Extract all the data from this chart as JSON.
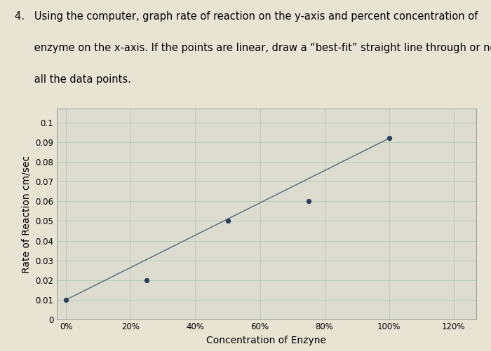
{
  "xlabel": "Concentration of Enzyne",
  "ylabel": "Rate of Reaction cm/sec",
  "x_data": [
    0,
    25,
    50,
    75,
    100
  ],
  "y_data": [
    0.01,
    0.02,
    0.05,
    0.06,
    0.092
  ],
  "line_x": [
    0,
    100
  ],
  "line_y": [
    0.01,
    0.092
  ],
  "x_ticks": [
    0,
    20,
    40,
    60,
    80,
    100,
    120
  ],
  "x_tick_labels": [
    "0%",
    "20%",
    "40%",
    "60%",
    "80%",
    "100%",
    "120%"
  ],
  "y_ticks": [
    0,
    0.01,
    0.02,
    0.03,
    0.04,
    0.05,
    0.06,
    0.07,
    0.08,
    0.09,
    0.1
  ],
  "y_tick_labels": [
    "0",
    "0.01",
    "0.02",
    "0.03",
    "0.04",
    "0.05",
    "0.06",
    "0.07",
    "0.08",
    "0.09",
    "0.1"
  ],
  "xlim": [
    -3,
    127
  ],
  "ylim": [
    0,
    0.107
  ],
  "point_color": "#2b3f5c",
  "line_color": "#607080",
  "grid_color": "#b8ccb8",
  "bg_color": "#e8e4d4",
  "plot_bg_color": "#dcdcd0",
  "title_fontsize": 10.5,
  "label_fontsize": 10,
  "tick_fontsize": 8.5,
  "header_line1": "4.   Using the computer, graph rate of reaction on the y-axis and percent concentration of",
  "header_line2": "      enzyme on the x-axis. If the points are linear, draw a “best-fit” straight line through or near",
  "header_line3": "      all the data points."
}
